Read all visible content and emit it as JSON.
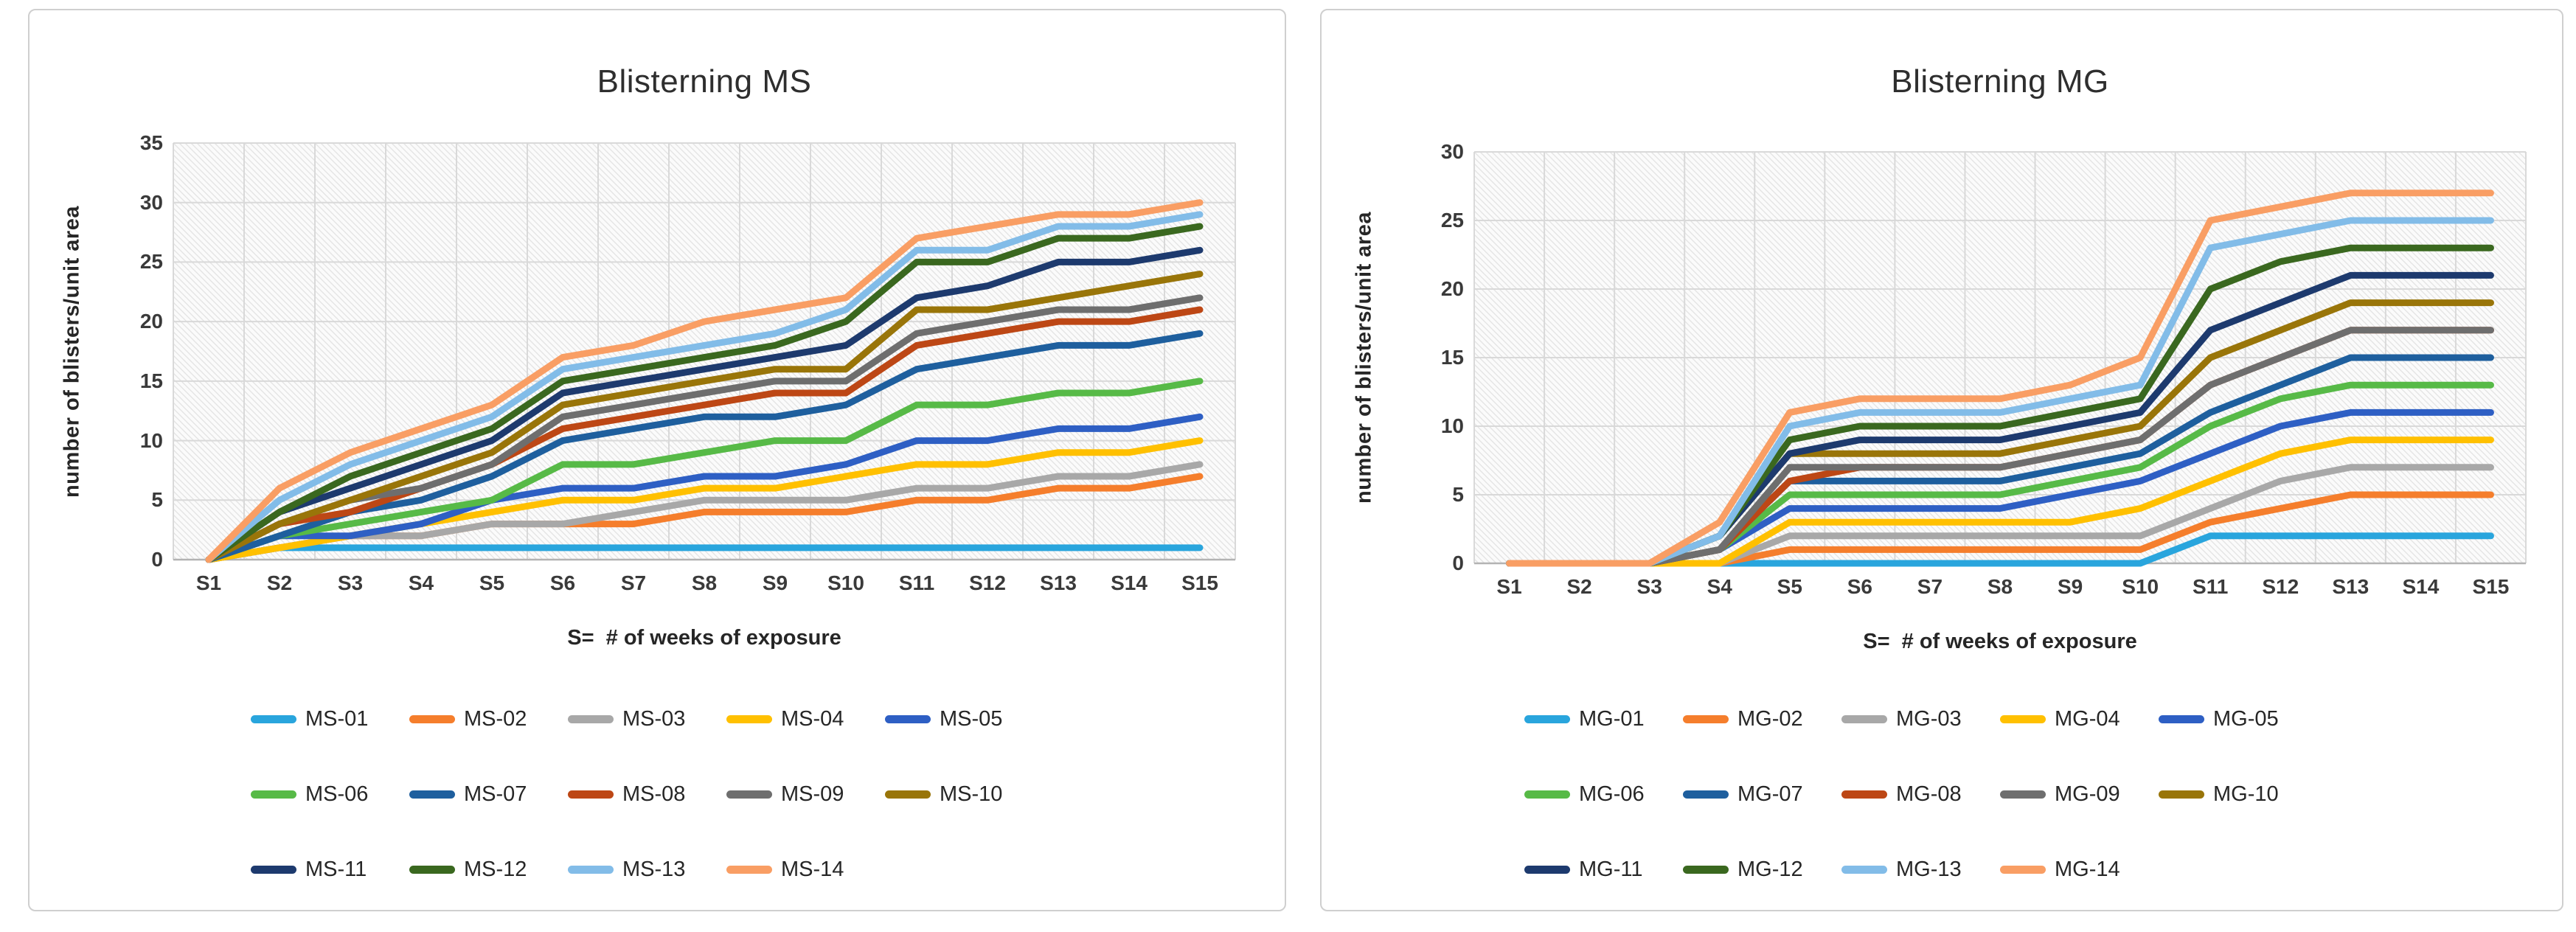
{
  "chart_data": [
    {
      "type": "line",
      "title": "Blisterning MS",
      "ylabel": "number of blisters/unit area",
      "xlabel": "S=  # of weeks of exposure",
      "categories": [
        "S1",
        "S2",
        "S3",
        "S4",
        "S5",
        "S6",
        "S7",
        "S8",
        "S9",
        "S10",
        "S11",
        "S12",
        "S13",
        "S14",
        "S15"
      ],
      "ylim": [
        0,
        35
      ],
      "ytick_step": 5,
      "yticks": [
        0,
        5,
        10,
        15,
        20,
        25,
        30,
        35
      ],
      "grid": true,
      "legend_position": "bottom",
      "legend_rows": [
        5,
        5,
        4
      ],
      "series": [
        {
          "name": "MS-01",
          "color": "#29A5DD",
          "values": [
            0,
            1,
            1,
            1,
            1,
            1,
            1,
            1,
            1,
            1,
            1,
            1,
            1,
            1,
            1
          ]
        },
        {
          "name": "MS-02",
          "color": "#F57E2C",
          "values": [
            0,
            1,
            2,
            2,
            3,
            3,
            3,
            4,
            4,
            4,
            5,
            5,
            6,
            6,
            7
          ]
        },
        {
          "name": "MS-03",
          "color": "#A8A8A8",
          "values": [
            0,
            1,
            2,
            2,
            3,
            3,
            4,
            5,
            5,
            5,
            6,
            6,
            7,
            7,
            8
          ]
        },
        {
          "name": "MS-04",
          "color": "#FFC000",
          "values": [
            0,
            1,
            2,
            3,
            4,
            5,
            5,
            6,
            6,
            7,
            8,
            8,
            9,
            9,
            10
          ]
        },
        {
          "name": "MS-05",
          "color": "#2E5FC4",
          "values": [
            0,
            2,
            2,
            3,
            5,
            6,
            6,
            7,
            7,
            8,
            10,
            10,
            11,
            11,
            12
          ]
        },
        {
          "name": "MS-06",
          "color": "#57BA47",
          "values": [
            0,
            2,
            3,
            4,
            5,
            8,
            8,
            9,
            10,
            10,
            13,
            13,
            14,
            14,
            15
          ]
        },
        {
          "name": "MS-07",
          "color": "#1E5F9E",
          "values": [
            0,
            2,
            4,
            5,
            7,
            10,
            11,
            12,
            12,
            13,
            16,
            17,
            18,
            18,
            19
          ]
        },
        {
          "name": "MS-08",
          "color": "#BD4715",
          "values": [
            0,
            3,
            4,
            6,
            8,
            11,
            12,
            13,
            14,
            14,
            18,
            19,
            20,
            20,
            21
          ]
        },
        {
          "name": "MS-09",
          "color": "#6E6E6E",
          "values": [
            0,
            3,
            5,
            6,
            8,
            12,
            13,
            14,
            15,
            15,
            19,
            20,
            21,
            21,
            22
          ]
        },
        {
          "name": "MS-10",
          "color": "#997509",
          "values": [
            0,
            3,
            5,
            7,
            9,
            13,
            14,
            15,
            16,
            16,
            21,
            21,
            22,
            23,
            24
          ]
        },
        {
          "name": "MS-11",
          "color": "#1D3A6E",
          "values": [
            0,
            4,
            6,
            8,
            10,
            14,
            15,
            16,
            17,
            18,
            22,
            23,
            25,
            25,
            26
          ]
        },
        {
          "name": "MS-12",
          "color": "#3A681F",
          "values": [
            0,
            4,
            7,
            9,
            11,
            15,
            16,
            17,
            18,
            20,
            25,
            25,
            27,
            27,
            28
          ]
        },
        {
          "name": "MS-13",
          "color": "#82BCE8",
          "values": [
            0,
            5,
            8,
            10,
            12,
            16,
            17,
            18,
            19,
            21,
            26,
            26,
            28,
            28,
            29
          ]
        },
        {
          "name": "MS-14",
          "color": "#F99E64",
          "values": [
            0,
            6,
            9,
            11,
            13,
            17,
            18,
            20,
            21,
            22,
            27,
            28,
            29,
            29,
            30
          ]
        }
      ]
    },
    {
      "type": "line",
      "title": "Blisterning MG",
      "ylabel": "number of blisters/unit area",
      "xlabel": "S=  # of weeks of exposure",
      "categories": [
        "S1",
        "S2",
        "S3",
        "S4",
        "S5",
        "S6",
        "S7",
        "S8",
        "S9",
        "S10",
        "S11",
        "S12",
        "S13",
        "S14",
        "S15"
      ],
      "ylim": [
        0,
        30
      ],
      "ytick_step": 5,
      "yticks": [
        0,
        5,
        10,
        15,
        20,
        25,
        30
      ],
      "grid": true,
      "legend_position": "bottom",
      "legend_rows": [
        5,
        5,
        4
      ],
      "series": [
        {
          "name": "MG-01",
          "color": "#29A5DD",
          "values": [
            0,
            0,
            0,
            0,
            0,
            0,
            0,
            0,
            0,
            0,
            2,
            2,
            2,
            2,
            2
          ]
        },
        {
          "name": "MG-02",
          "color": "#F57E2C",
          "values": [
            0,
            0,
            0,
            0,
            1,
            1,
            1,
            1,
            1,
            1,
            3,
            4,
            5,
            5,
            5
          ]
        },
        {
          "name": "MG-03",
          "color": "#A8A8A8",
          "values": [
            0,
            0,
            0,
            0,
            2,
            2,
            2,
            2,
            2,
            2,
            4,
            6,
            7,
            7,
            7
          ]
        },
        {
          "name": "MG-04",
          "color": "#FFC000",
          "values": [
            0,
            0,
            0,
            0,
            3,
            3,
            3,
            3,
            3,
            4,
            6,
            8,
            9,
            9,
            9
          ]
        },
        {
          "name": "MG-05",
          "color": "#2E5FC4",
          "values": [
            0,
            0,
            0,
            1,
            4,
            4,
            4,
            4,
            5,
            6,
            8,
            10,
            11,
            11,
            11
          ]
        },
        {
          "name": "MG-06",
          "color": "#57BA47",
          "values": [
            0,
            0,
            0,
            1,
            5,
            5,
            5,
            5,
            6,
            7,
            10,
            12,
            13,
            13,
            13
          ]
        },
        {
          "name": "MG-07",
          "color": "#1E5F9E",
          "values": [
            0,
            0,
            0,
            1,
            6,
            6,
            6,
            6,
            7,
            8,
            11,
            13,
            15,
            15,
            15
          ]
        },
        {
          "name": "MG-08",
          "color": "#BD4715",
          "values": [
            0,
            0,
            0,
            1,
            6,
            7,
            7,
            7,
            8,
            9,
            13,
            15,
            17,
            17,
            17
          ]
        },
        {
          "name": "MG-09",
          "color": "#6E6E6E",
          "values": [
            0,
            0,
            0,
            1,
            7,
            7,
            7,
            7,
            8,
            9,
            13,
            15,
            17,
            17,
            17
          ]
        },
        {
          "name": "MG-10",
          "color": "#997509",
          "values": [
            0,
            0,
            0,
            2,
            8,
            8,
            8,
            8,
            9,
            10,
            15,
            17,
            19,
            19,
            19
          ]
        },
        {
          "name": "MG-11",
          "color": "#1D3A6E",
          "values": [
            0,
            0,
            0,
            2,
            8,
            9,
            9,
            9,
            10,
            11,
            17,
            19,
            21,
            21,
            21
          ]
        },
        {
          "name": "MG-12",
          "color": "#3A681F",
          "values": [
            0,
            0,
            0,
            2,
            9,
            10,
            10,
            10,
            11,
            12,
            20,
            22,
            23,
            23,
            23
          ]
        },
        {
          "name": "MG-13",
          "color": "#82BCE8",
          "values": [
            0,
            0,
            0,
            2,
            10,
            11,
            11,
            11,
            12,
            13,
            23,
            24,
            25,
            25,
            25
          ]
        },
        {
          "name": "MG-14",
          "color": "#F99E64",
          "values": [
            0,
            0,
            0,
            3,
            11,
            12,
            12,
            12,
            13,
            15,
            25,
            26,
            27,
            27,
            27
          ]
        }
      ]
    }
  ],
  "style_colors": {
    "gridline": "#d9d9d9",
    "axis_line": "#b3b3b3",
    "hatch_line": "#e4e4e4",
    "plot_background": "#fbfbfb",
    "card_border": "#cfcfcf"
  }
}
